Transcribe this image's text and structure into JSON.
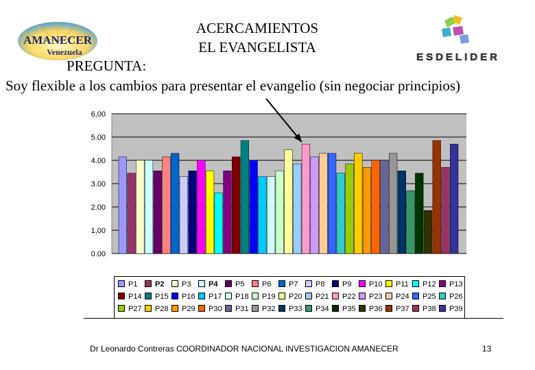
{
  "header": {
    "title_line1": "ACERCAMIENTOS",
    "title_line2": "EL EVANGELISTA",
    "pregunta_label": "PREGUNTA:",
    "question": "Soy flexible a los cambios para presentar el evangelio (sin negociar principios)"
  },
  "logos": {
    "left_line1": "AMANECER",
    "left_line2": "Venezuela",
    "right_text": "ESDELIDER"
  },
  "chart_data": {
    "type": "bar",
    "ylim": [
      0,
      6
    ],
    "yticks": [
      "0.00",
      "1,00",
      "2.00",
      "3.00",
      "4.00",
      "5.00",
      "6,00"
    ],
    "grid": true,
    "legend_position": "bottom",
    "series": [
      {
        "name": "P1",
        "value": 4.15,
        "color": "#9999ff"
      },
      {
        "name": "P2",
        "value": 3.45,
        "color": "#993366"
      },
      {
        "name": "P3",
        "value": 4.0,
        "color": "#ffffcc"
      },
      {
        "name": "P4",
        "value": 4.0,
        "color": "#ccffff"
      },
      {
        "name": "P5",
        "value": 3.55,
        "color": "#660066"
      },
      {
        "name": "P6",
        "value": 4.15,
        "color": "#ff8080"
      },
      {
        "name": "P7",
        "value": 4.3,
        "color": "#0066cc"
      },
      {
        "name": "P8",
        "value": 3.3,
        "color": "#ccccff"
      },
      {
        "name": "P9",
        "value": 3.55,
        "color": "#000080"
      },
      {
        "name": "P10",
        "value": 4.0,
        "color": "#ff00ff"
      },
      {
        "name": "P11",
        "value": 3.55,
        "color": "#ffff00"
      },
      {
        "name": "P12",
        "value": 2.6,
        "color": "#00ffff"
      },
      {
        "name": "P13",
        "value": 3.55,
        "color": "#800080"
      },
      {
        "name": "P14",
        "value": 4.15,
        "color": "#800000"
      },
      {
        "name": "P15",
        "value": 4.85,
        "color": "#008080"
      },
      {
        "name": "P16",
        "value": 4.0,
        "color": "#0000ff"
      },
      {
        "name": "P17",
        "value": 3.3,
        "color": "#00ccff"
      },
      {
        "name": "P18",
        "value": 3.3,
        "color": "#ccffff"
      },
      {
        "name": "P19",
        "value": 3.55,
        "color": "#ccffcc"
      },
      {
        "name": "P20",
        "value": 4.45,
        "color": "#ffff99"
      },
      {
        "name": "P21",
        "value": 3.85,
        "color": "#99ccff"
      },
      {
        "name": "P22",
        "value": 4.7,
        "color": "#ff99cc"
      },
      {
        "name": "P23",
        "value": 4.15,
        "color": "#cc99ff"
      },
      {
        "name": "P24",
        "value": 4.3,
        "color": "#ffcc99"
      },
      {
        "name": "P25",
        "value": 4.3,
        "color": "#3366ff"
      },
      {
        "name": "P26",
        "value": 3.45,
        "color": "#33cccc"
      },
      {
        "name": "P27",
        "value": 3.85,
        "color": "#99cc00"
      },
      {
        "name": "P28",
        "value": 4.3,
        "color": "#ffcc00"
      },
      {
        "name": "P29",
        "value": 3.7,
        "color": "#ff9900"
      },
      {
        "name": "P30",
        "value": 4.0,
        "color": "#ff6600"
      },
      {
        "name": "P31",
        "value": 4.0,
        "color": "#666699"
      },
      {
        "name": "P32",
        "value": 4.3,
        "color": "#969696"
      },
      {
        "name": "P33",
        "value": 3.55,
        "color": "#003366"
      },
      {
        "name": "P34",
        "value": 2.7,
        "color": "#339966"
      },
      {
        "name": "P35",
        "value": 3.45,
        "color": "#003300"
      },
      {
        "name": "P36",
        "value": 1.85,
        "color": "#333300"
      },
      {
        "name": "P37",
        "value": 4.85,
        "color": "#993300"
      },
      {
        "name": "P38",
        "value": 3.7,
        "color": "#993366"
      },
      {
        "name": "P39",
        "value": 4.7,
        "color": "#333399"
      }
    ],
    "arrow_target": "P22"
  },
  "footer": {
    "author": "Dr Leonardo Contreras   COORDINADOR NACIONAL INVESTIGACION AMANECER",
    "page_number": "13"
  }
}
